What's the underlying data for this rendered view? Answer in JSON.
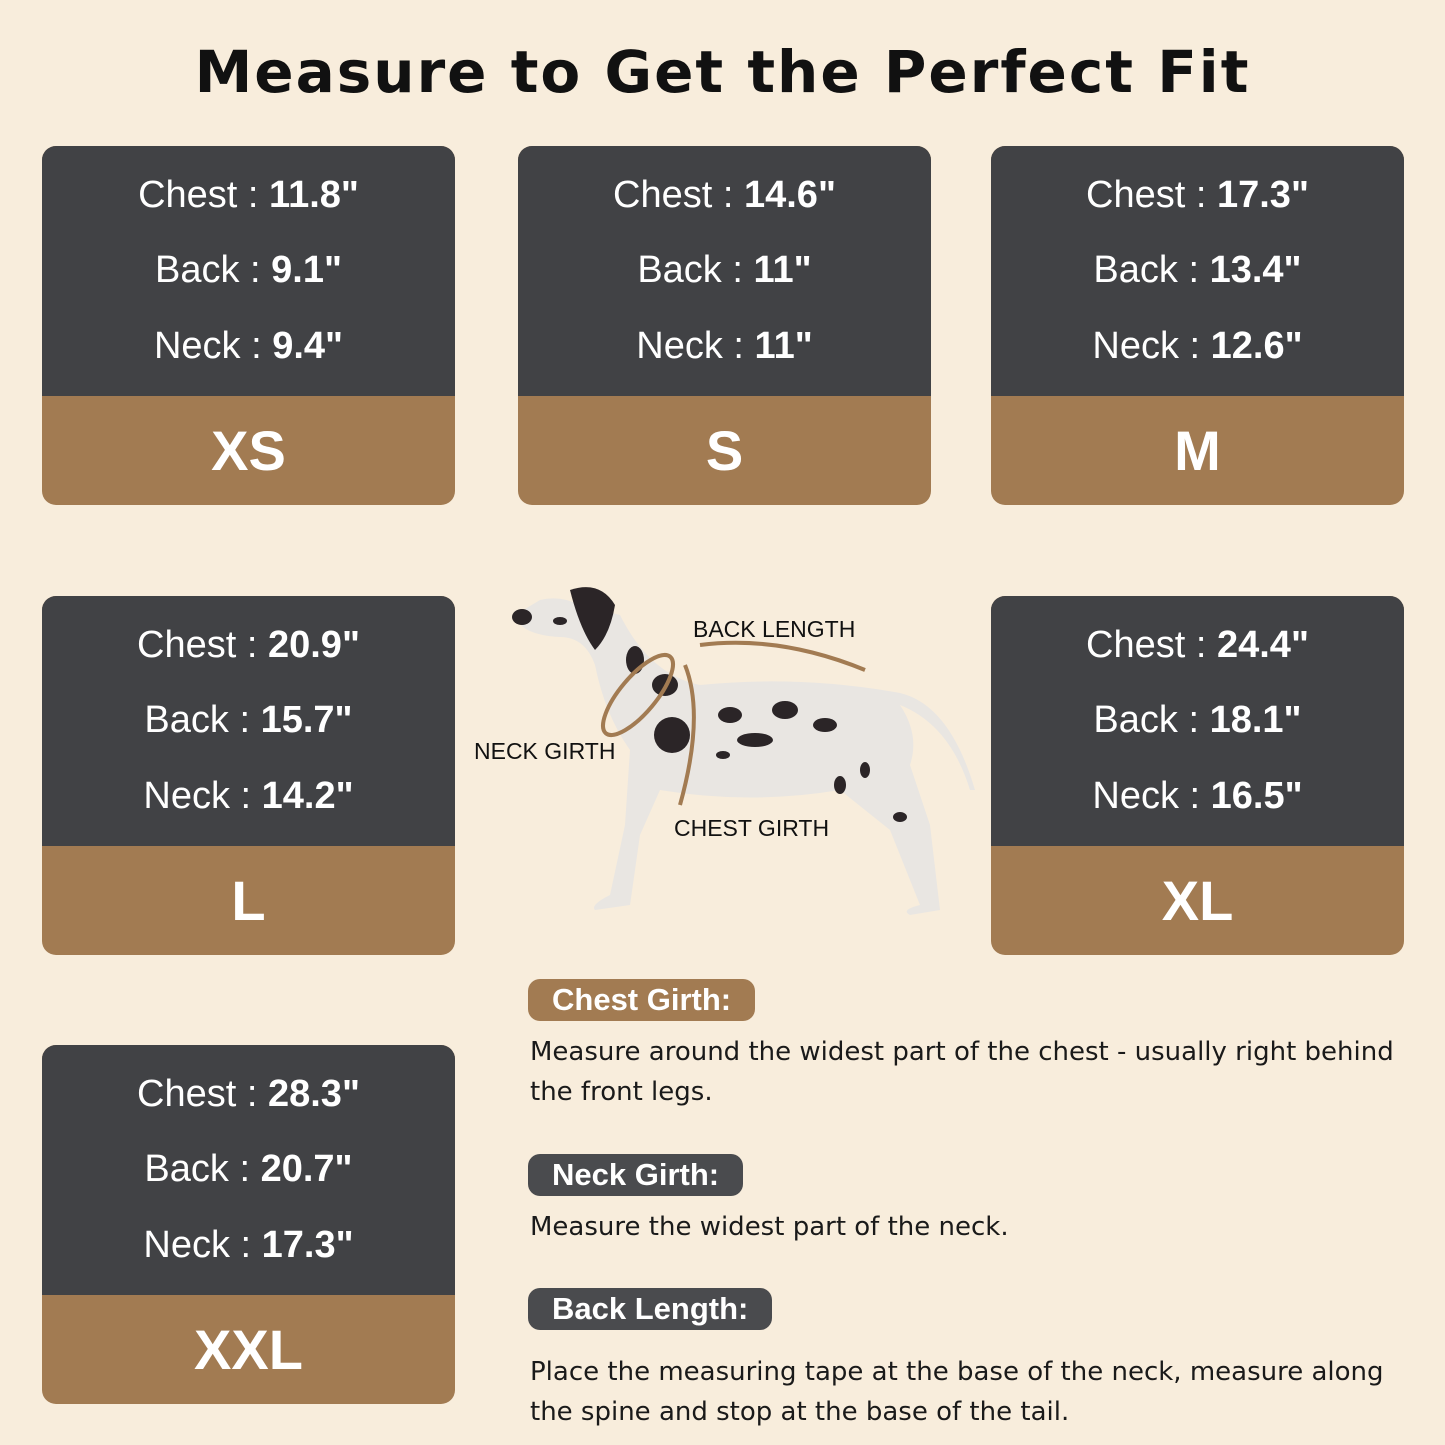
{
  "title": "Measure to Get the Perfect Fit",
  "colors": {
    "background": "#f8eddc",
    "card_dark": "#414245",
    "accent_brown": "#a27b52"
  },
  "sizes": [
    {
      "size": "XS",
      "chest_label": "Chest : ",
      "chest": "11.8\"",
      "back_label": "Back : ",
      "back": "9.1\"",
      "neck_label": "Neck : ",
      "neck": "9.4\""
    },
    {
      "size": "S",
      "chest_label": "Chest : ",
      "chest": "14.6\"",
      "back_label": "Back : ",
      "back": "11\"",
      "neck_label": "Neck : ",
      "neck": "11\""
    },
    {
      "size": "M",
      "chest_label": "Chest : ",
      "chest": "17.3\"",
      "back_label": "Back : ",
      "back": "13.4\"",
      "neck_label": "Neck : ",
      "neck": "12.6\""
    },
    {
      "size": "L",
      "chest_label": "Chest : ",
      "chest": "20.9\"",
      "back_label": "Back : ",
      "back": "15.7\"",
      "neck_label": "Neck : ",
      "neck": "14.2\""
    },
    {
      "size": "XL",
      "chest_label": "Chest : ",
      "chest": "24.4\"",
      "back_label": "Back : ",
      "back": "18.1\"",
      "neck_label": "Neck : ",
      "neck": "16.5\""
    },
    {
      "size": "XXL",
      "chest_label": "Chest : ",
      "chest": "28.3\"",
      "back_label": "Back : ",
      "back": "20.7\"",
      "neck_label": "Neck : ",
      "neck": "17.3\""
    }
  ],
  "diagram": {
    "back_length": "BACK LENGTH",
    "neck_girth": "NECK GIRTH",
    "chest_girth": "CHEST GIRTH"
  },
  "instructions": [
    {
      "label": "Chest Girth:",
      "text": "Measure around the widest part of the chest - usually right behind the front legs."
    },
    {
      "label": "Neck Girth:",
      "text": "Measure the widest part of the neck."
    },
    {
      "label": "Back Length:",
      "text": "Place the measuring tape at the base of the neck, measure along the spine and stop at the base of the tail."
    }
  ]
}
